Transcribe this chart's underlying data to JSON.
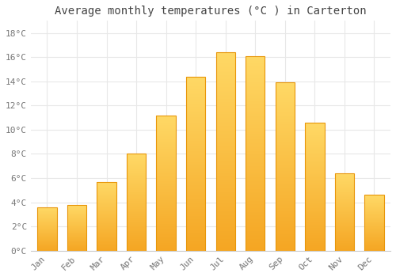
{
  "months": [
    "Jan",
    "Feb",
    "Mar",
    "Apr",
    "May",
    "Jun",
    "Jul",
    "Aug",
    "Sep",
    "Oct",
    "Nov",
    "Dec"
  ],
  "values": [
    3.6,
    3.8,
    5.7,
    8.0,
    11.2,
    14.4,
    16.4,
    16.1,
    13.9,
    10.6,
    6.4,
    4.6
  ],
  "grad_bottom": "#F5A623",
  "grad_top": "#FFD966",
  "bar_edge_color": "#E8960A",
  "title": "Average monthly temperatures (°C ) in Carterton",
  "ylim": [
    0,
    19
  ],
  "yticks": [
    0,
    2,
    4,
    6,
    8,
    10,
    12,
    14,
    16,
    18
  ],
  "ytick_labels": [
    "0°C",
    "2°C",
    "4°C",
    "6°C",
    "8°C",
    "10°C",
    "12°C",
    "14°C",
    "16°C",
    "18°C"
  ],
  "background_color": "#FFFFFF",
  "grid_color": "#E8E8E8",
  "title_fontsize": 10,
  "tick_fontsize": 8,
  "bar_width": 0.65,
  "n_grad": 200,
  "figsize": [
    5.0,
    3.5
  ],
  "dpi": 100
}
